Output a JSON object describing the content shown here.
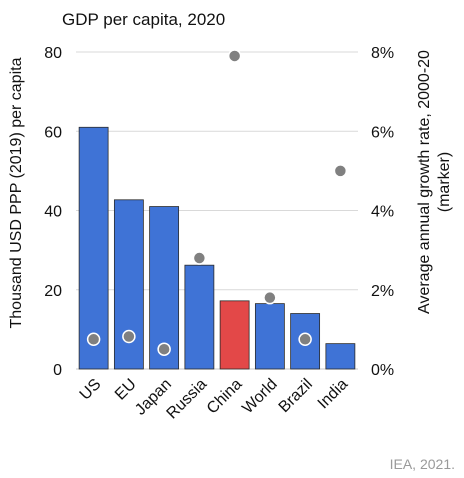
{
  "chart_data": {
    "type": "bar",
    "title": "GDP per capita, 2020",
    "categories": [
      "US",
      "EU",
      "Japan",
      "Russia",
      "China",
      "World",
      "Brazil",
      "India"
    ],
    "series": [
      {
        "name": "",
        "values": [
          61,
          42.7,
          41,
          26.2,
          17.2,
          16.5,
          14,
          6.4
        ],
        "colors": [
          "#3f73d6",
          "#3f73d6",
          "#3f73d6",
          "#3f73d6",
          "#e34848",
          "#3f73d6",
          "#3f73d6",
          "#3f73d6"
        ]
      }
    ],
    "markers": {
      "values": [
        0.75,
        0.82,
        0.5,
        2.8,
        7.9,
        1.8,
        0.75,
        5.0
      ],
      "color": "#808080"
    },
    "ylabel": "Thousand USD PPP (2019) per capita",
    "ylim": [
      0,
      80
    ],
    "yticks": [
      "0",
      "20",
      "40",
      "60",
      "80"
    ],
    "y2label_lines": [
      "Average annual growth rate, 2000-20",
      "(marker)"
    ],
    "y2lim": [
      0,
      8
    ],
    "y2ticks": [
      "0%",
      "2%",
      "4%",
      "6%",
      "8%"
    ],
    "grid": true,
    "legend": "none"
  },
  "source": "IEA, 2021."
}
